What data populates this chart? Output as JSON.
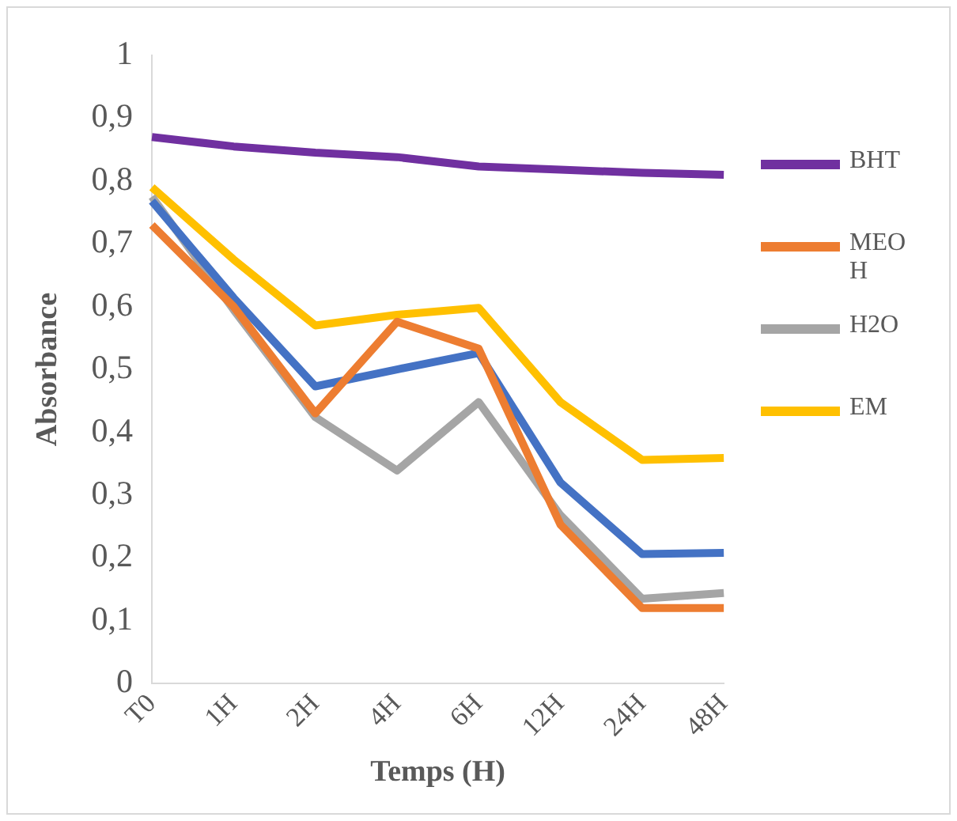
{
  "chart_data": {
    "type": "line",
    "xlabel": "Temps (H)",
    "ylabel": "Absorbance",
    "categories": [
      "T0",
      "1H",
      "2H",
      "4H",
      "6H",
      "12H",
      "24H",
      "48H"
    ],
    "series": [
      {
        "name": "BHT",
        "color": "#7030a0",
        "values": [
          0.87,
          0.855,
          0.845,
          0.838,
          0.823,
          0.818,
          0.813,
          0.81
        ]
      },
      {
        "name": "MEOH",
        "color": "#ed7d31",
        "values": [
          0.73,
          0.6,
          0.43,
          0.576,
          0.533,
          0.253,
          0.12,
          0.12
        ]
      },
      {
        "color": "#4472c4",
        "values": [
          0.768,
          0.614,
          0.473,
          0.5,
          0.526,
          0.32,
          0.206,
          0.208
        ]
      },
      {
        "name": "H2O",
        "color": "#a5a5a5",
        "values": [
          0.775,
          0.595,
          0.424,
          0.339,
          0.448,
          0.268,
          0.135,
          0.144
        ]
      },
      {
        "name": "EM",
        "color": "#ffc000",
        "values": [
          0.79,
          0.675,
          0.57,
          0.587,
          0.598,
          0.448,
          0.356,
          0.359
        ]
      }
    ],
    "ylim": [
      0,
      1
    ],
    "yticks": [
      {
        "value": 0,
        "label": "0"
      },
      {
        "value": 0.1,
        "label": "0,1"
      },
      {
        "value": 0.2,
        "label": "0,2"
      },
      {
        "value": 0.3,
        "label": "0,3"
      },
      {
        "value": 0.4,
        "label": "0,4"
      },
      {
        "value": 0.5,
        "label": "0,5"
      },
      {
        "value": 0.6,
        "label": "0,6"
      },
      {
        "value": 0.7,
        "label": "0,7"
      },
      {
        "value": 0.8,
        "label": "0,8"
      },
      {
        "value": 0.9,
        "label": "0,9"
      },
      {
        "value": 1,
        "label": "1"
      }
    ],
    "grid": false,
    "legend": "right",
    "marker": "none",
    "line_style": "solid"
  }
}
